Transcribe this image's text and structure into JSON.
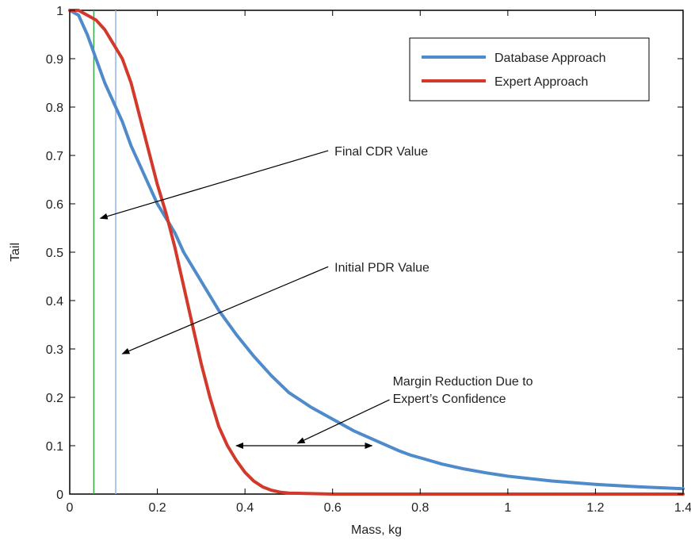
{
  "chart_data": {
    "type": "line",
    "xlabel": "Mass, kg",
    "ylabel": "Tail",
    "xlim": [
      0,
      1.4
    ],
    "ylim": [
      0,
      1
    ],
    "xticks": [
      0,
      0.2,
      0.4,
      0.6,
      0.8,
      1,
      1.2,
      1.4
    ],
    "yticks": [
      0,
      0.1,
      0.2,
      0.3,
      0.4,
      0.5,
      0.6,
      0.7,
      0.8,
      0.9,
      1
    ],
    "xtick_labels": [
      "0",
      "0.2",
      "0.4",
      "0.6",
      "0.8",
      "1",
      "1.2",
      "1.4"
    ],
    "ytick_labels": [
      "0",
      "0.1",
      "0.2",
      "0.3",
      "0.4",
      "0.5",
      "0.6",
      "0.7",
      "0.8",
      "0.9",
      "1"
    ],
    "grid": false,
    "legend_position": "top-right",
    "series": [
      {
        "name": "Database Approach",
        "color": "#4f8bcb",
        "x": [
          0,
          0.02,
          0.04,
          0.06,
          0.08,
          0.1,
          0.12,
          0.14,
          0.16,
          0.18,
          0.2,
          0.22,
          0.24,
          0.26,
          0.28,
          0.3,
          0.34,
          0.38,
          0.42,
          0.46,
          0.5,
          0.55,
          0.6,
          0.65,
          0.7,
          0.75,
          0.78,
          0.8,
          0.85,
          0.9,
          0.95,
          1.0,
          1.1,
          1.2,
          1.3,
          1.4
        ],
        "y": [
          1.0,
          0.99,
          0.95,
          0.9,
          0.85,
          0.81,
          0.77,
          0.72,
          0.68,
          0.64,
          0.6,
          0.57,
          0.54,
          0.5,
          0.47,
          0.44,
          0.38,
          0.33,
          0.285,
          0.245,
          0.21,
          0.18,
          0.155,
          0.13,
          0.11,
          0.09,
          0.08,
          0.075,
          0.062,
          0.052,
          0.044,
          0.037,
          0.027,
          0.02,
          0.015,
          0.011
        ]
      },
      {
        "name": "Expert Approach",
        "color": "#d3392b",
        "x": [
          0,
          0.02,
          0.04,
          0.06,
          0.08,
          0.1,
          0.12,
          0.14,
          0.16,
          0.18,
          0.2,
          0.22,
          0.24,
          0.26,
          0.28,
          0.3,
          0.32,
          0.34,
          0.36,
          0.38,
          0.4,
          0.42,
          0.44,
          0.46,
          0.48,
          0.5,
          0.55,
          0.6,
          0.8,
          1.0,
          1.2,
          1.4
        ],
        "y": [
          1.0,
          1.0,
          0.99,
          0.98,
          0.96,
          0.93,
          0.9,
          0.85,
          0.78,
          0.71,
          0.64,
          0.58,
          0.51,
          0.43,
          0.35,
          0.27,
          0.2,
          0.14,
          0.1,
          0.07,
          0.045,
          0.027,
          0.015,
          0.008,
          0.004,
          0.002,
          0.001,
          0.0,
          0.0,
          0.0,
          0.0,
          0.0
        ]
      }
    ],
    "reference_lines": [
      {
        "x": 0.055,
        "color": "#3aa54a"
      },
      {
        "x": 0.105,
        "color": "#8fb6e8"
      }
    ],
    "annotations": [
      {
        "text": "Final CDR Value",
        "arrow_from": [
          0.59,
          0.71
        ],
        "arrow_to": [
          0.07,
          0.57
        ]
      },
      {
        "text": "Initial PDR Value",
        "arrow_from": [
          0.59,
          0.47
        ],
        "arrow_to": [
          0.12,
          0.29
        ]
      },
      {
        "text": "Margin Reduction Due to",
        "text2": "Expert’s Confidence",
        "arrow_from": [
          0.73,
          0.195
        ],
        "arrow_to": [
          0.52,
          0.105
        ]
      }
    ],
    "margin_arrow": {
      "x_start": 0.38,
      "x_end": 0.69,
      "y": 0.1
    }
  }
}
